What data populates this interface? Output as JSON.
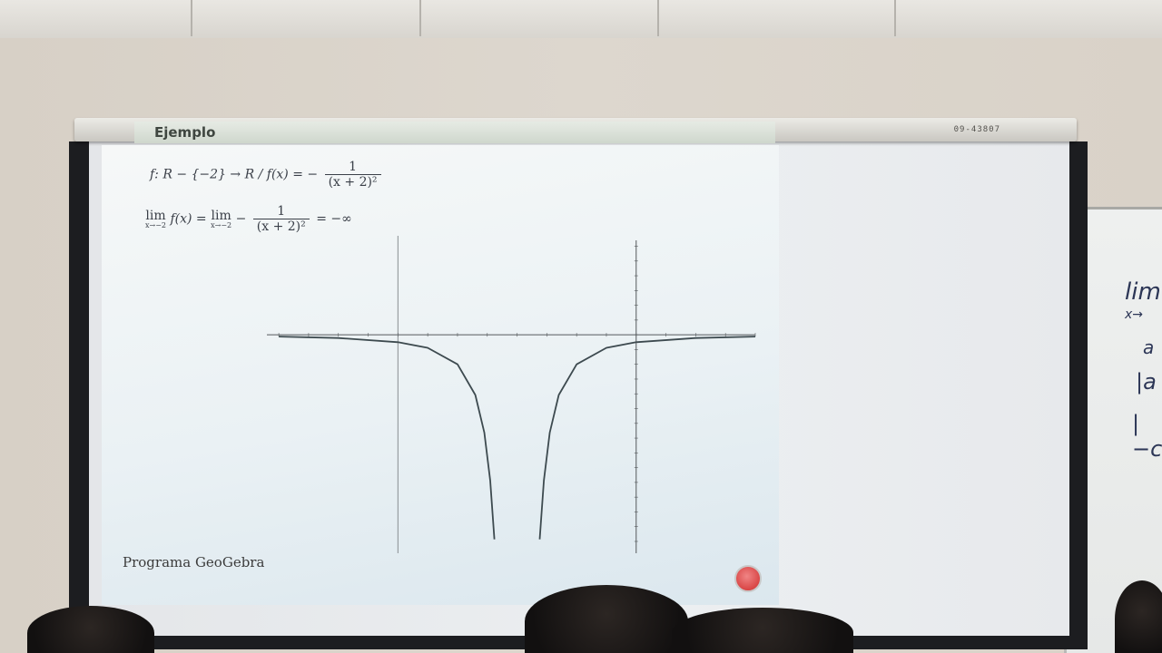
{
  "housing": {
    "code": "09-43807"
  },
  "slide": {
    "title": "Ejemplo",
    "line1": {
      "prefix": "f: R − {−2} → R / f(x) = −",
      "numerator": "1",
      "denominator": "(x + 2)²"
    },
    "line2": {
      "lim_word_1": "lim",
      "lim_sub_1": "x→−2",
      "mid": "f(x) = ",
      "lim_word_2": "lim",
      "lim_sub_2": "x→−2",
      "minus": "−",
      "numerator": "1",
      "denominator": "(x + 2)²",
      "result": "= −∞"
    },
    "footer": "Programa GeoGebra"
  },
  "whiteboard": {
    "line1": "lim",
    "line2": "x→",
    "line3": "a",
    "line4": "|a",
    "line5": "|−c"
  },
  "chart_data": {
    "type": "line",
    "function": "f(x) = -1/(x+2)^2",
    "asymptote_x": -2,
    "xlim": [
      -6.2,
      2.0
    ],
    "ylim": [
      -7.4,
      3.2
    ],
    "series": [
      {
        "x": [
          -6.0,
          -5.0,
          -4.0,
          -3.5,
          -3.0,
          -2.7,
          -2.55,
          -2.45,
          -2.38
        ],
        "y": [
          -0.06,
          -0.11,
          -0.25,
          -0.44,
          -1.0,
          -2.04,
          -3.31,
          -4.94,
          -6.93
        ]
      },
      {
        "x": [
          -1.62,
          -1.55,
          -1.45,
          -1.3,
          -1.0,
          -0.5,
          0.0,
          1.0,
          2.0
        ],
        "y": [
          -6.93,
          -4.94,
          -3.31,
          -2.04,
          -1.0,
          -0.44,
          -0.25,
          -0.11,
          -0.06
        ]
      }
    ],
    "colors": {
      "curve": "#3d4a4f",
      "axis": "#55595c"
    }
  }
}
